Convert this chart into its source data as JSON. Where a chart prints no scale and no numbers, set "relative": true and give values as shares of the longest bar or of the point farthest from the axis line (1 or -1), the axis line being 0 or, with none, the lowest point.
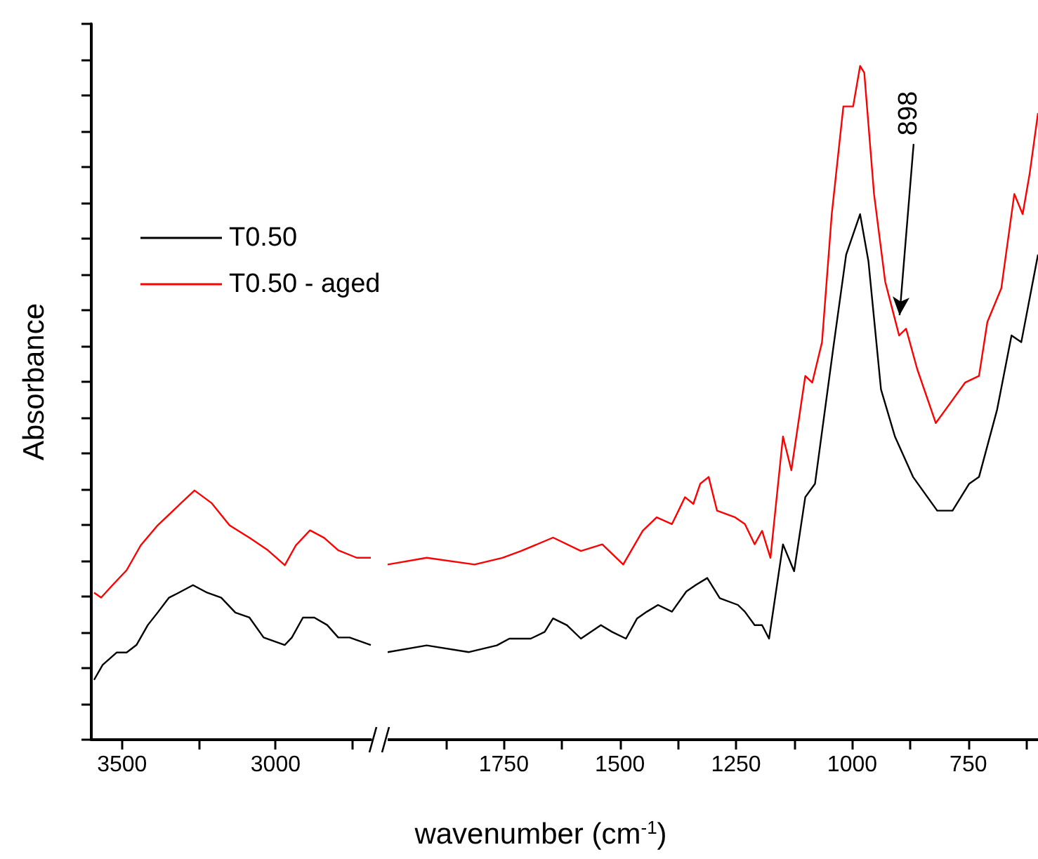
{
  "chart_data": [
    {
      "type": "line",
      "relative": true,
      "ylabel": "Absorbance",
      "xlim": [
        3600,
        2690
      ],
      "xticks": [
        3500,
        {
          "value": 3250,
          "label": null
        },
        3000,
        {
          "value": 2750,
          "label": null
        }
      ],
      "legend": "top right",
      "grid": false,
      "marker": "none",
      "line_style": "solid",
      "series": [
        {
          "name": "T0.50",
          "color": "#000000",
          "x": [
            3591,
            3563,
            3517,
            3485,
            3453,
            3416,
            3384,
            3347,
            3315,
            3269,
            3223,
            3177,
            3131,
            3085,
            3039,
            2970,
            2947,
            2911,
            2874,
            2832,
            2796,
            2759,
            2690
          ],
          "values": [
            0.24,
            0.3,
            0.35,
            0.35,
            0.38,
            0.46,
            0.51,
            0.57,
            0.59,
            0.62,
            0.59,
            0.57,
            0.51,
            0.49,
            0.41,
            0.38,
            0.41,
            0.49,
            0.49,
            0.46,
            0.41,
            0.41,
            0.38
          ]
        },
        {
          "name": "T0.50 - aged",
          "color": "#ff0000",
          "x": [
            3591,
            3568,
            3531,
            3485,
            3439,
            3384,
            3333,
            3264,
            3209,
            3150,
            3085,
            3025,
            2970,
            2934,
            2888,
            2842,
            2796,
            2736,
            2690
          ],
          "values": [
            0.59,
            0.57,
            0.62,
            0.68,
            0.78,
            0.86,
            0.92,
            1,
            0.95,
            0.86,
            0.81,
            0.76,
            0.7,
            0.78,
            0.84,
            0.81,
            0.76,
            0.73,
            0.73
          ]
        }
      ]
    },
    {
      "type": "line",
      "relative": true,
      "xlabel": "wavenumber (cm$^{-1}$)",
      "xlim": [
        2000,
        600
      ],
      "xticks": [
        {
          "value": 1875,
          "label": null
        },
        1750,
        {
          "value": 1625,
          "label": null
        },
        1500,
        {
          "value": 1375,
          "label": null
        },
        1250,
        {
          "value": 1125,
          "label": null
        },
        1000,
        {
          "value": 875,
          "label": null
        },
        750,
        {
          "value": 625,
          "label": null
        }
      ],
      "grid": false,
      "marker": "none",
      "line_style": "solid",
      "annotations": [
        {
          "text": "898",
          "x": 898,
          "y": 0.63
        }
      ],
      "series": [
        {
          "color": "#000000",
          "x": [
            2000,
            1916,
            1825,
            1765,
            1738,
            1692,
            1662,
            1644,
            1614,
            1584,
            1541,
            1517,
            1487,
            1463,
            1442,
            1418,
            1388,
            1357,
            1336,
            1312,
            1285,
            1246,
            1231,
            1210,
            1194,
            1179,
            1149,
            1125,
            1101,
            1080,
            1041,
            1013,
            983,
            965,
            938,
            908,
            869,
            817,
            784,
            748,
            727,
            688,
            657,
            636,
            600
          ],
          "values": [
            0.13,
            0.14,
            0.13,
            0.14,
            0.15,
            0.15,
            0.16,
            0.18,
            0.17,
            0.15,
            0.17,
            0.16,
            0.15,
            0.18,
            0.19,
            0.2,
            0.19,
            0.22,
            0.23,
            0.24,
            0.21,
            0.2,
            0.19,
            0.17,
            0.17,
            0.15,
            0.29,
            0.25,
            0.36,
            0.38,
            0.58,
            0.72,
            0.78,
            0.71,
            0.52,
            0.45,
            0.39,
            0.34,
            0.34,
            0.38,
            0.39,
            0.49,
            0.6,
            0.59,
            0.72
          ]
        },
        {
          "color": "#ff0000",
          "x": [
            2000,
            1916,
            1813,
            1753,
            1713,
            1644,
            1584,
            1538,
            1493,
            1451,
            1421,
            1388,
            1360,
            1342,
            1327,
            1309,
            1291,
            1252,
            1231,
            1210,
            1194,
            1176,
            1149,
            1131,
            1101,
            1086,
            1065,
            1044,
            1019,
            998,
            983,
            974,
            953,
            929,
            899,
            884,
            860,
            820,
            799,
            757,
            727,
            709,
            679,
            651,
            633,
            618,
            600
          ],
          "values": [
            0.26,
            0.27,
            0.26,
            0.27,
            0.28,
            0.3,
            0.28,
            0.29,
            0.26,
            0.31,
            0.33,
            0.32,
            0.36,
            0.35,
            0.38,
            0.39,
            0.34,
            0.33,
            0.32,
            0.29,
            0.31,
            0.27,
            0.45,
            0.4,
            0.54,
            0.53,
            0.59,
            0.78,
            0.94,
            0.94,
            1,
            0.99,
            0.81,
            0.68,
            0.6,
            0.61,
            0.55,
            0.47,
            0.49,
            0.53,
            0.54,
            0.62,
            0.67,
            0.81,
            0.78,
            0.84,
            0.93
          ]
        }
      ]
    }
  ]
}
